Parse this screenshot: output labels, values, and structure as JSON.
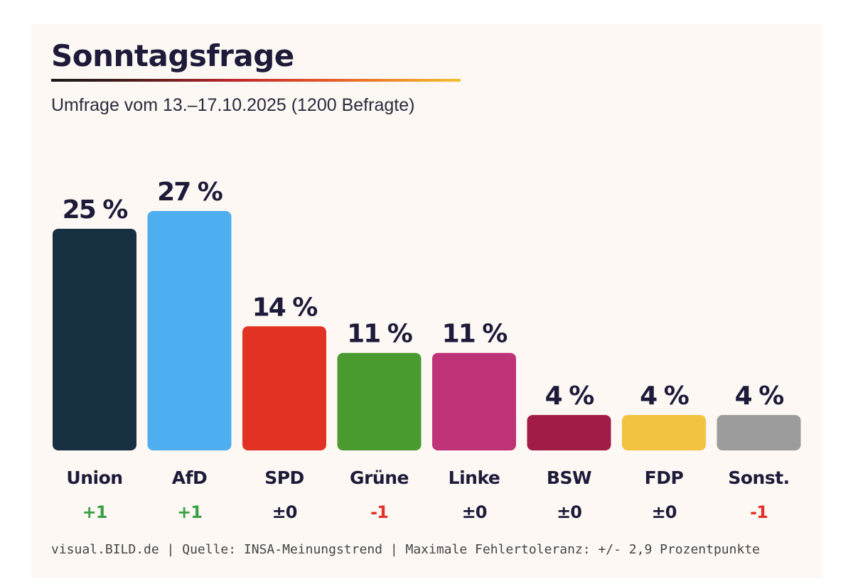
{
  "title": "Sonntagsfrage",
  "subtitle": "Umfrage vom 13.–17.10.2025 (1200 Befragte)",
  "footer": "visual.BILD.de | Quelle: INSA-Meinungstrend | Maximale Fehlertoleranz: +/- 2,9 Prozentpunkte",
  "colors": {
    "positive": "#3aa046",
    "negative": "#e0322a",
    "neutral": "#1d1a3a"
  },
  "chart_data": {
    "type": "bar",
    "categories": [
      "Union",
      "AfD",
      "SPD",
      "Grüne",
      "Linke",
      "BSW",
      "FDP",
      "Sonst."
    ],
    "values": [
      25,
      27,
      14,
      11,
      11,
      4,
      4,
      4
    ],
    "value_labels": [
      "25 %",
      "27 %",
      "14 %",
      "11 %",
      "11 %",
      "4 %",
      "4 %",
      "4 %"
    ],
    "changes": [
      "+1",
      "+1",
      "±0",
      "-1",
      "±0",
      "±0",
      "±0",
      "-1"
    ],
    "change_types": [
      "positive",
      "positive",
      "neutral",
      "negative",
      "neutral",
      "neutral",
      "neutral",
      "negative"
    ],
    "bar_colors": [
      "#163042",
      "#4eaef0",
      "#e23224",
      "#4a9a30",
      "#be3278",
      "#a21c48",
      "#f2c240",
      "#9c9c9c"
    ],
    "ylim": [
      0,
      27
    ],
    "grid": false,
    "legend": "none"
  }
}
